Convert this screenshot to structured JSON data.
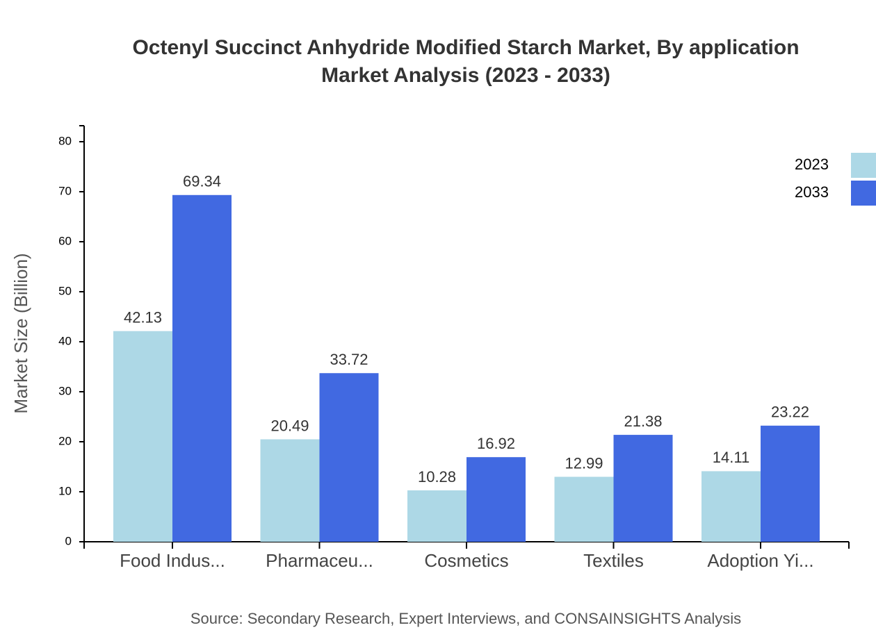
{
  "chart_data": {
    "type": "bar",
    "title": "Octenyl Succinct Anhydride Modified Starch Market, By application",
    "subtitle": "Market Analysis (2023 - 2033)",
    "y_label": "Market Size (Billion)",
    "source": "Source: Secondary Research, Expert Interviews, and CONSAINSIGHTS Analysis",
    "categories": [
      "Food Indus...",
      "Pharmaceu...",
      "Cosmetics",
      "Textiles",
      "Adoption Yi..."
    ],
    "series": [
      {
        "name": "2023",
        "color": "#add8e6",
        "values": [
          42.13,
          20.49,
          10.28,
          12.99,
          14.11
        ]
      },
      {
        "name": "2033",
        "color": "#4169e1",
        "values": [
          69.34,
          33.72,
          16.92,
          21.38,
          23.22
        ]
      }
    ],
    "ylim": [
      0,
      83.2
    ],
    "yticks": [
      0,
      10,
      20,
      30,
      40,
      50,
      60,
      70,
      80
    ],
    "legend": "top-right"
  }
}
